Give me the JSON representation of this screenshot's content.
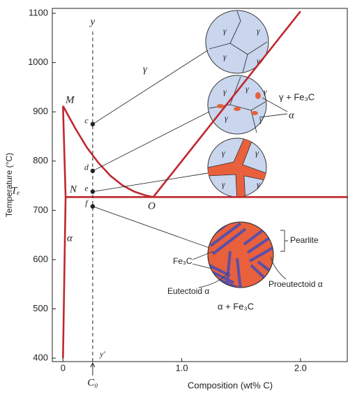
{
  "chart_data": {
    "type": "line",
    "xlabel": "Composition (wt% C)",
    "ylabel": "Temperature (°C)",
    "xlim": [
      -0.09,
      2.4
    ],
    "ylim": [
      393,
      1110
    ],
    "xticks": [
      0,
      {
        "value": 1,
        "label": "1.0"
      },
      {
        "value": 2,
        "label": "2.0"
      }
    ],
    "yticks": [
      400,
      500,
      600,
      700,
      800,
      900,
      1000,
      1100
    ],
    "series": [
      {
        "color": "#c0272d",
        "x": [
          0,
          0.1,
          0.2,
          0.3,
          0.4,
          0.5,
          0.6,
          0.7,
          0.76
        ],
        "values": [
          912,
          868,
          828,
          796,
          770,
          751,
          738,
          730,
          727
        ]
      },
      {
        "color": "#c0272d",
        "x": [
          0.76,
          2.0
        ],
        "values": [
          727,
          1104
        ]
      },
      {
        "color": "#c0272d",
        "x": [
          0.022,
          2.4
        ],
        "values": [
          727,
          727
        ]
      },
      {
        "color": "#c0272d",
        "x": [
          0,
          0.022
        ],
        "values": [
          912,
          727
        ]
      },
      {
        "color": "#c0272d",
        "x": [
          0.022,
          0
        ],
        "values": [
          727,
          400
        ]
      }
    ],
    "composition_line": {
      "x": 0.25,
      "label": "C₀",
      "top_label": "y",
      "bottom_label": "y'"
    },
    "points": [
      {
        "label": "c",
        "y": 875
      },
      {
        "label": "d",
        "y": 780
      },
      {
        "label": "e",
        "y": 738
      },
      {
        "label": "f",
        "y": 708
      }
    ],
    "annotations": [
      "γ",
      "γ + Fe₃C",
      "α + Fe₃C",
      "M",
      "N",
      "O",
      "Tₑ",
      "α",
      "Pearlite",
      "Fe₃C",
      "Eutectoid α",
      "Proeutectoid α",
      "α"
    ],
    "micrographs": [
      {
        "labels": [
          "γ",
          "γ",
          "γ",
          "γ"
        ]
      },
      {
        "labels": [
          "γ",
          "γ",
          "γ",
          "γ",
          "γ"
        ]
      },
      {
        "labels": [
          "γ",
          "γ",
          "γ",
          "γ"
        ]
      }
    ]
  }
}
